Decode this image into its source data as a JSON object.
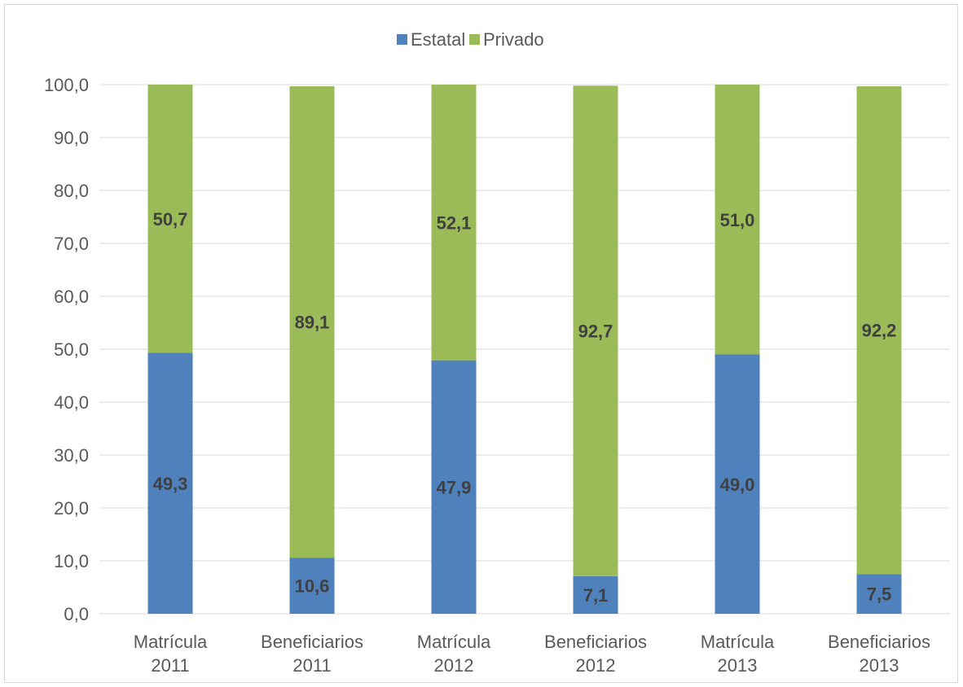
{
  "chart_data": {
    "type": "bar",
    "stacked": true,
    "categories": [
      [
        "Matrícula",
        "2011"
      ],
      [
        "Beneficiarios",
        "2011"
      ],
      [
        "Matrícula",
        "2012"
      ],
      [
        "Beneficiarios",
        "2012"
      ],
      [
        "Matrícula",
        "2013"
      ],
      [
        "Beneficiarios",
        "2013"
      ]
    ],
    "series": [
      {
        "name": "Estatal",
        "color": "#4f81bd",
        "values": [
          49.3,
          10.6,
          47.9,
          7.1,
          49.0,
          7.5
        ],
        "labels": [
          "49,3",
          "10,6",
          "47,9",
          "7,1",
          "49,0",
          "7,5"
        ]
      },
      {
        "name": "Privado",
        "color": "#9bbb59",
        "values": [
          50.7,
          89.1,
          52.1,
          92.7,
          51.0,
          92.2
        ],
        "labels": [
          "50,7",
          "89,1",
          "52,1",
          "92,7",
          "51,0",
          "92,2"
        ]
      }
    ],
    "ylim": [
      0,
      100
    ],
    "yticks": [
      0,
      10,
      20,
      30,
      40,
      50,
      60,
      70,
      80,
      90,
      100
    ],
    "ytick_labels": [
      "0,0",
      "10,0",
      "20,0",
      "30,0",
      "40,0",
      "50,0",
      "60,0",
      "70,0",
      "80,0",
      "90,0",
      "100,0"
    ],
    "legend_position": "top",
    "grid": true,
    "colors": {
      "grid": "#d9d9d9",
      "axis_text": "#595959",
      "data_label": "#404040"
    }
  }
}
